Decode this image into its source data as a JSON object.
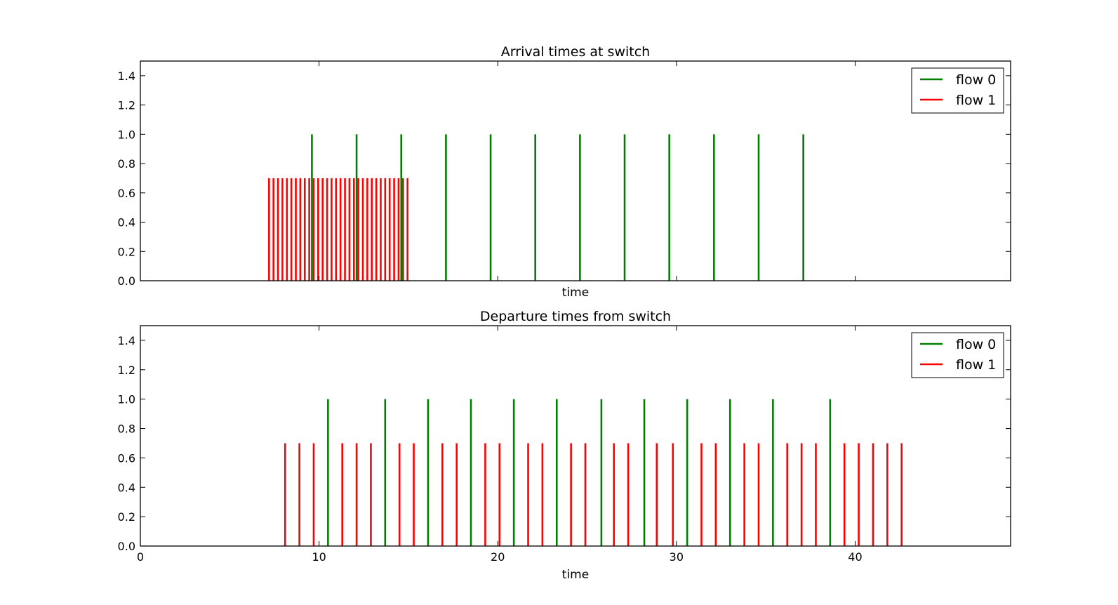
{
  "chart_data": [
    {
      "type": "stem",
      "title": "Arrival times at switch",
      "xlabel": "time",
      "ylabel": "",
      "xlim": [
        0,
        48.7
      ],
      "ylim": [
        0,
        1.5
      ],
      "yticks": [
        "0.0",
        "0.2",
        "0.4",
        "0.6",
        "0.8",
        "1.0",
        "1.2",
        "1.4"
      ],
      "xticks": [
        "",
        "",
        "",
        "",
        ""
      ],
      "legend": {
        "position": "top-right",
        "entries": [
          "flow 0",
          "flow 1"
        ]
      },
      "series": [
        {
          "name": "flow 0",
          "color": "#008000",
          "height": 1.0,
          "x": [
            9.6,
            12.1,
            14.6,
            17.1,
            19.6,
            22.1,
            24.6,
            27.1,
            29.6,
            32.1,
            34.6,
            37.1
          ]
        },
        {
          "name": "flow 1",
          "color": "#ff0000",
          "height": 0.7,
          "x": [
            7.2,
            7.45,
            7.7,
            7.95,
            8.2,
            8.45,
            8.7,
            8.95,
            9.2,
            9.45,
            9.7,
            9.95,
            10.2,
            10.45,
            10.7,
            10.95,
            11.2,
            11.45,
            11.7,
            11.95,
            12.2,
            12.45,
            12.7,
            12.95,
            13.2,
            13.45,
            13.7,
            13.95,
            14.2,
            14.45,
            14.7,
            14.95
          ]
        }
      ]
    },
    {
      "type": "stem",
      "title": "Departure times from switch",
      "xlabel": "time",
      "ylabel": "",
      "xlim": [
        0,
        48.7
      ],
      "ylim": [
        0,
        1.5
      ],
      "yticks": [
        "0.0",
        "0.2",
        "0.4",
        "0.6",
        "0.8",
        "1.0",
        "1.2",
        "1.4"
      ],
      "xticks": [
        "0",
        "10",
        "20",
        "30",
        "40"
      ],
      "legend": {
        "position": "top-right",
        "entries": [
          "flow 0",
          "flow 1"
        ]
      },
      "series": [
        {
          "name": "flow 0",
          "color": "#008000",
          "height": 1.0,
          "x": [
            10.5,
            13.7,
            16.1,
            18.5,
            20.9,
            23.3,
            25.8,
            28.2,
            30.6,
            33.0,
            35.4,
            38.6
          ]
        },
        {
          "name": "flow 1",
          "color": "#ff0000",
          "height": 0.7,
          "x": [
            8.1,
            8.9,
            9.7,
            11.3,
            12.1,
            12.9,
            14.5,
            15.3,
            16.9,
            17.7,
            19.3,
            20.1,
            21.7,
            22.5,
            24.1,
            24.9,
            26.5,
            27.3,
            28.9,
            29.8,
            31.4,
            32.2,
            33.8,
            34.6,
            36.2,
            37.0,
            37.8,
            39.4,
            40.2,
            41.0,
            41.8,
            42.6
          ]
        }
      ]
    }
  ]
}
